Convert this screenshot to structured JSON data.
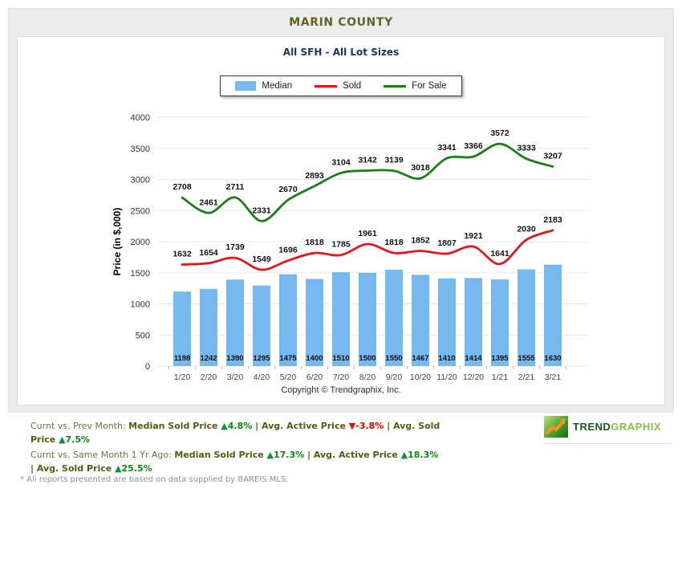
{
  "header": {
    "title": "MARIN COUNTY"
  },
  "subtitle": "All SFH - All Lot Sizes",
  "legend": [
    {
      "label": "Median",
      "swatch": "bar",
      "color": "#76b9f0"
    },
    {
      "label": "Sold",
      "swatch": "line",
      "color": "#e3161d"
    },
    {
      "label": "For Sale",
      "swatch": "line",
      "color": "#1b7e1b"
    }
  ],
  "chart_data": {
    "type": "combo",
    "title": "All SFH - All Lot Sizes",
    "categories": [
      "1/20",
      "2/20",
      "3/20",
      "4/20",
      "5/20",
      "6/20",
      "7/20",
      "8/20",
      "9/20",
      "10/20",
      "11/20",
      "12/20",
      "1/21",
      "2/21",
      "3/21"
    ],
    "series": [
      {
        "name": "Median",
        "type": "bar",
        "color": "#76b9f0",
        "values": [
          1198,
          1242,
          1390,
          1295,
          1475,
          1400,
          1510,
          1500,
          1550,
          1467,
          1410,
          1414,
          1395,
          1555,
          1630
        ]
      },
      {
        "name": "Sold",
        "type": "line",
        "color": "#e3161d",
        "values": [
          1632,
          1654,
          1739,
          1549,
          1696,
          1818,
          1785,
          1961,
          1818,
          1852,
          1807,
          1921,
          1641,
          2030,
          2183
        ]
      },
      {
        "name": "For Sale",
        "type": "line",
        "color": "#1b7e1b",
        "values": [
          2708,
          2461,
          2711,
          2331,
          2670,
          2893,
          3104,
          3142,
          3139,
          3018,
          3341,
          3366,
          3572,
          3333,
          3207
        ]
      }
    ],
    "xlabel": "",
    "ylabel": "Price (in $,000)",
    "ylim": [
      0,
      4000
    ],
    "yticks": [
      0,
      500,
      1000,
      1500,
      2000,
      2500,
      3000,
      3500,
      4000
    ],
    "grid": true,
    "legend_position": "top"
  },
  "copyright": "Copyright © Trendgraphix, Inc.",
  "footer": {
    "positive_color": "#0d8a0f",
    "negative_color": "#e60000",
    "arrow_up": "▲",
    "arrow_down": "▼",
    "line1": {
      "prefix": "Curnt vs. Prev Month: ",
      "stats": [
        {
          "label": "Median Sold Price",
          "dir": "up",
          "value": "4.8%"
        },
        {
          "label": "Avg. Active Price",
          "dir": "down",
          "value": "-3.8%"
        },
        {
          "label": "Avg. Sold Price",
          "dir": "up",
          "value": "7.5%"
        }
      ]
    },
    "line2": {
      "prefix": "Curnt vs. Same Month 1 Yr Ago: ",
      "stats": [
        {
          "label": "Median Sold Price",
          "dir": "up",
          "value": "17.3%"
        },
        {
          "label": "Avg. Active Price",
          "dir": "up",
          "value": "18.3%"
        },
        {
          "label": "Avg. Sold Price",
          "dir": "up",
          "value": "25.5%"
        }
      ]
    }
  },
  "logo": {
    "brand_bold": "TREND",
    "brand_light": "GRAPHIX"
  },
  "disclaimer": "* All reports presented are based on data supplied by BAREIS MLS."
}
